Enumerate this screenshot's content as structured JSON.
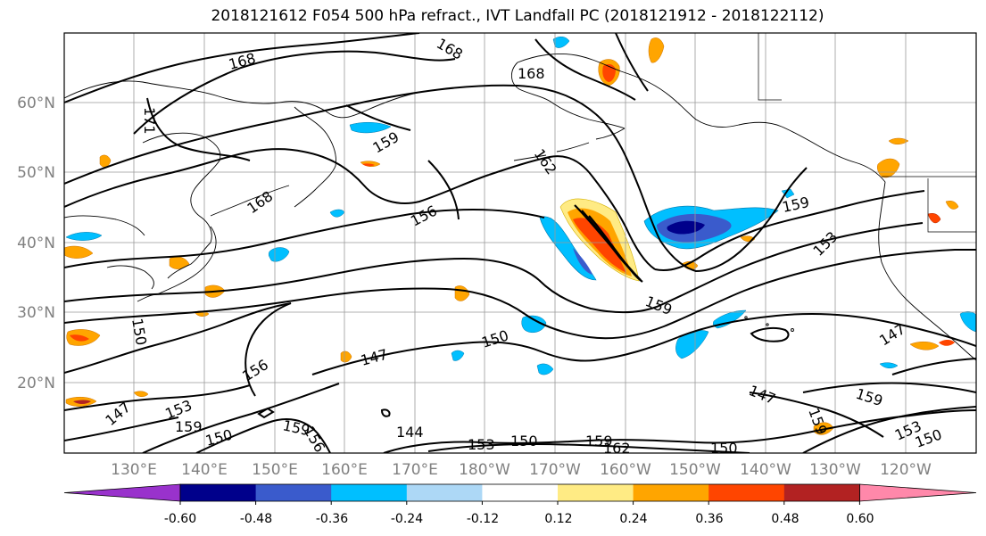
{
  "title": "2018121612 F054 500 hPa refract., IVT Landfall PC (2018121912 - 2018122112)",
  "lat_labels": [
    "20°N",
    "30°N",
    "40°N",
    "50°N",
    "60°N"
  ],
  "lon_labels": [
    "130°E",
    "140°E",
    "150°E",
    "160°E",
    "170°E",
    "180°W",
    "170°W",
    "160°W",
    "150°W",
    "140°W",
    "130°W",
    "120°W"
  ],
  "contour_labels": [
    "168",
    "168",
    "168",
    "171",
    "159",
    "168",
    "162",
    "156",
    "159",
    "153",
    "159",
    "150",
    "147",
    "150",
    "156",
    "147",
    "147",
    "159",
    "144",
    "153",
    "150",
    "159",
    "150",
    "159",
    "153",
    "150",
    "147",
    "153",
    "156",
    "150",
    "159",
    "162",
    "159"
  ],
  "colorbar": {
    "tick_labels": [
      "-0.60",
      "-0.48",
      "-0.36",
      "-0.24",
      "-0.12",
      "0.12",
      "0.24",
      "0.36",
      "0.48",
      "0.60"
    ],
    "colors": [
      "#9932CC",
      "#00008B",
      "#3A5BCC",
      "#00BFFF",
      "#ADD8F6",
      "#FFFFFF",
      "#FFEB84",
      "#FFA500",
      "#FF4500",
      "#B22222",
      "#FF88AA"
    ]
  }
}
